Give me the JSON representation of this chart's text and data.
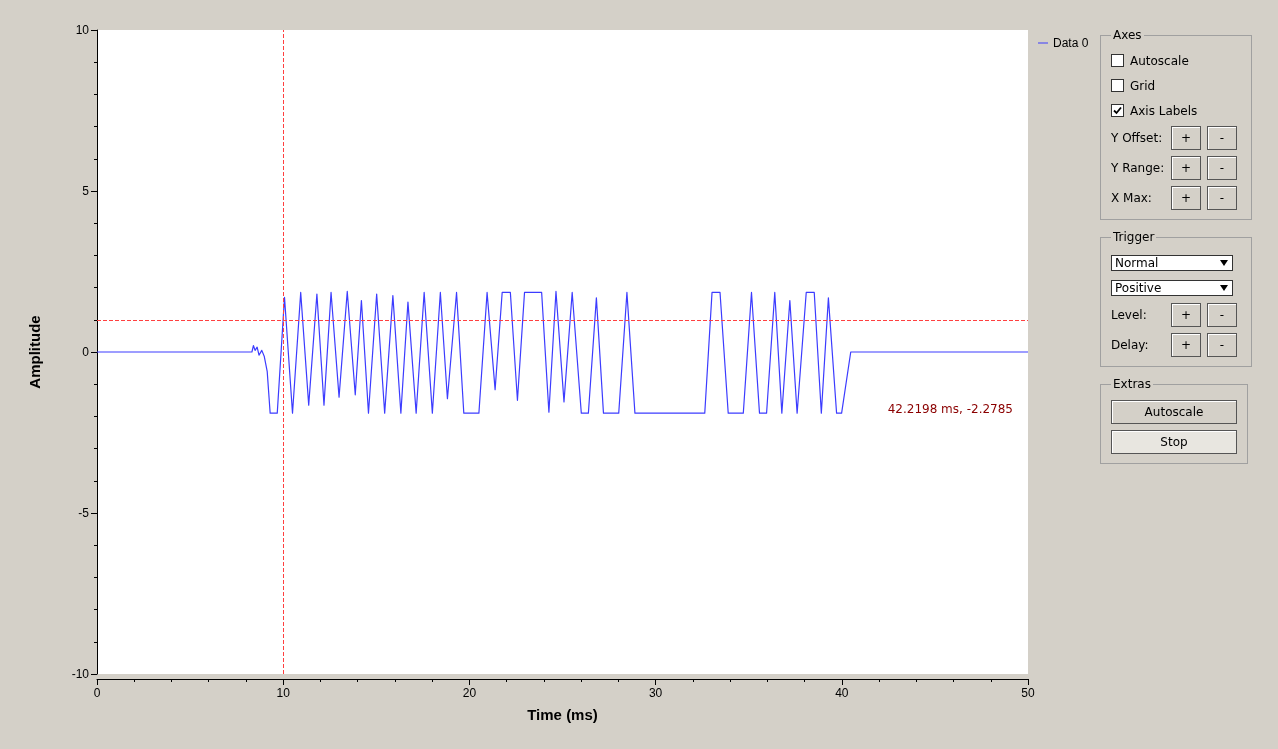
{
  "chart_data": {
    "type": "line",
    "xlabel": "Time (ms)",
    "ylabel": "Amplitude",
    "x": [
      0,
      8.32,
      8.4,
      8.49,
      8.6,
      8.7,
      8.85,
      8.98,
      9.14,
      9.3,
      9.68,
      10.07,
      10.5,
      10.94,
      11.37,
      11.81,
      12.19,
      12.57,
      13.0,
      13.44,
      13.87,
      14.2,
      14.58,
      15.02,
      15.45,
      15.89,
      16.32,
      16.7,
      17.14,
      17.57,
      18.01,
      18.44,
      18.82,
      19.31,
      19.7,
      20.51,
      20.95,
      21.38,
      21.76,
      22.2,
      22.58,
      22.96,
      23.88,
      24.27,
      24.65,
      25.08,
      25.52,
      26.01,
      26.39,
      26.82,
      27.2,
      28.02,
      28.46,
      28.89,
      32.64,
      33.03,
      33.46,
      33.9,
      34.71,
      35.15,
      35.58,
      35.96,
      36.4,
      36.78,
      37.21,
      37.6,
      38.09,
      38.52,
      38.9,
      39.28,
      39.72,
      39.99,
      40.48,
      50
    ],
    "series": [
      {
        "name": "Data 0",
        "color": "#3c3cff",
        "values": [
          0,
          0,
          0.2,
          0.05,
          0.15,
          -0.1,
          0.05,
          -0.13,
          -0.6,
          -1.9,
          -1.9,
          1.7,
          -1.9,
          1.85,
          -1.65,
          1.8,
          -1.65,
          1.85,
          -1.4,
          1.88,
          -1.33,
          1.6,
          -1.9,
          1.8,
          -1.9,
          1.75,
          -1.9,
          1.55,
          -1.9,
          1.85,
          -1.9,
          1.85,
          -1.45,
          1.85,
          -1.9,
          -1.9,
          1.85,
          -1.17,
          1.85,
          1.85,
          -1.5,
          1.85,
          1.85,
          -1.87,
          1.88,
          -1.55,
          1.85,
          -1.9,
          -1.9,
          1.68,
          -1.9,
          -1.9,
          1.85,
          -1.9,
          -1.9,
          1.85,
          1.85,
          -1.9,
          -1.9,
          1.85,
          -1.9,
          -1.9,
          1.85,
          -1.9,
          1.6,
          -1.9,
          1.85,
          1.85,
          -1.9,
          1.68,
          -1.9,
          -1.9,
          0,
          0
        ]
      }
    ],
    "xlim": [
      0,
      50
    ],
    "xticks": [
      0,
      10,
      20,
      30,
      40,
      50
    ],
    "ylim": [
      -10,
      10
    ],
    "yticks": [
      -10,
      -5,
      0,
      5,
      10
    ],
    "ref_lines": [
      {
        "axis": "x",
        "value": 10,
        "color": "#ff4040",
        "line_style": "dashed"
      },
      {
        "axis": "y",
        "value": 1,
        "color": "#ff4040",
        "line_style": "dashed"
      }
    ],
    "grid": false,
    "legend": "top right",
    "marker": "none",
    "line_style": "solid",
    "annotations": [
      "42.2198 ms, -2.2785",
      "Axes",
      "Autoscale",
      "Grid",
      "Axis Labels",
      "Y Offset:",
      "+",
      "-",
      "Y Range:",
      "+",
      "-",
      "X Max:",
      "+",
      "-",
      "Trigger",
      "Normal",
      "Positive",
      "Level:",
      "+",
      "-",
      "Delay:",
      "+",
      "-",
      "Extras",
      "Autoscale",
      "Stop"
    ]
  }
}
